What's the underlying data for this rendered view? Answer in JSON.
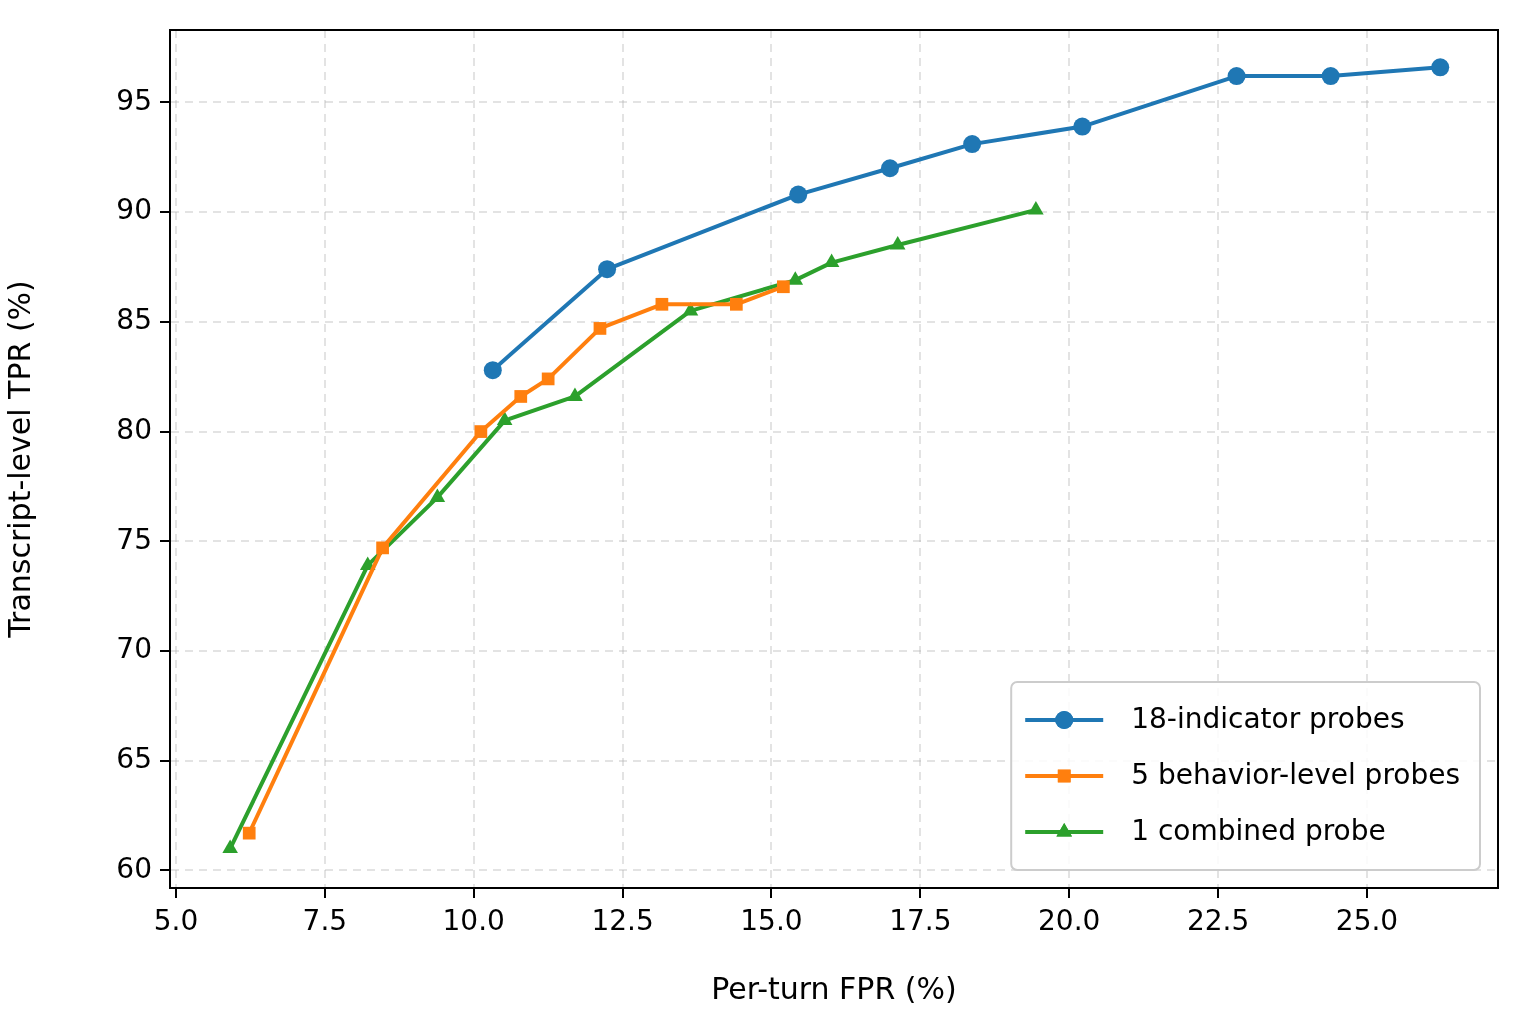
{
  "chart_data": {
    "type": "line",
    "xlabel": "Per-turn FPR (%)",
    "ylabel": "Transcript-level TPR (%)",
    "xlim": [
      4.9,
      27.2
    ],
    "xticks": [
      {
        "value": 5,
        "label": "5.0"
      },
      {
        "value": 7.5,
        "label": "7.5"
      },
      {
        "value": 10,
        "label": "10.0"
      },
      {
        "value": 12.5,
        "label": "12.5"
      },
      {
        "value": 15,
        "label": "15.0"
      },
      {
        "value": 17.5,
        "label": "17.5"
      },
      {
        "value": 20,
        "label": "20.0"
      },
      {
        "value": 22.5,
        "label": "22.5"
      },
      {
        "value": 25,
        "label": "25.0"
      }
    ],
    "ylim": [
      59.2,
      98.3
    ],
    "yticks": [
      60,
      65,
      70,
      75,
      80,
      85,
      90,
      95
    ],
    "grid": true,
    "legend": "bottom right",
    "line_style": "solid",
    "series": [
      {
        "name": "18-indicator probes",
        "color": "#1f77b4",
        "marker": "circle",
        "x": [
          10.32,
          12.24,
          15.45,
          16.99,
          18.37,
          20.22,
          22.81,
          24.39,
          26.23
        ],
        "values": [
          82.8,
          87.4,
          90.8,
          92.0,
          93.1,
          93.9,
          96.2,
          96.2,
          96.6
        ]
      },
      {
        "name": "5 behavior-level probes",
        "color": "#ff7f0e",
        "marker": "square",
        "x": [
          6.23,
          8.47,
          10.12,
          10.79,
          11.25,
          12.12,
          13.16,
          14.41,
          15.2
        ],
        "values": [
          61.7,
          74.7,
          80.0,
          81.6,
          82.4,
          84.7,
          85.8,
          85.8,
          86.6
        ]
      },
      {
        "name": "1 combined probe",
        "color": "#2ca02c",
        "marker": "triangle",
        "x": [
          5.91,
          8.22,
          9.39,
          10.52,
          11.7,
          13.64,
          15.4,
          16.01,
          17.12,
          19.44
        ],
        "values": [
          61.0,
          73.9,
          77.0,
          80.5,
          81.6,
          85.5,
          86.9,
          87.7,
          88.5,
          90.1
        ]
      }
    ]
  }
}
